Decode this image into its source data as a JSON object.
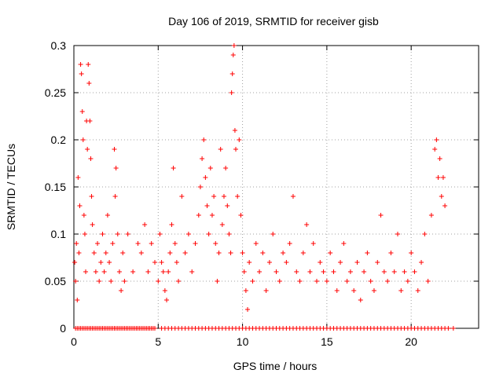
{
  "chart_data": {
    "type": "scatter",
    "title": "Day 106 of 2019, SRMTID for receiver gisb",
    "xlabel": "GPS time / hours",
    "ylabel": "SRMTID / TECUs",
    "xlim": [
      0,
      24
    ],
    "ylim": [
      0,
      0.3
    ],
    "xticks": [
      0,
      5,
      10,
      15,
      20
    ],
    "xtick_labels": [
      "0",
      "5",
      "10",
      "15",
      "20"
    ],
    "yticks": [
      0,
      0.05,
      0.1,
      0.15,
      0.2,
      0.25,
      0.3
    ],
    "ytick_labels": [
      "0",
      "0.05",
      "0.1",
      "0.15",
      "0.2",
      "0.25",
      "0.3"
    ],
    "grid": true,
    "marker": "plus",
    "color": "#ff0000",
    "series": [
      {
        "name": "SRMTID",
        "points": [
          [
            0.05,
            0.07
          ],
          [
            0.1,
            0.05
          ],
          [
            0.15,
            0.09
          ],
          [
            0.2,
            0.03
          ],
          [
            0.25,
            0.16
          ],
          [
            0.3,
            0.08
          ],
          [
            0.35,
            0.13
          ],
          [
            0.4,
            0.28
          ],
          [
            0.45,
            0.27
          ],
          [
            0.5,
            0.23
          ],
          [
            0.55,
            0.2
          ],
          [
            0.6,
            0.12
          ],
          [
            0.65,
            0.1
          ],
          [
            0.7,
            0.06
          ],
          [
            0.75,
            0.22
          ],
          [
            0.8,
            0.19
          ],
          [
            0.85,
            0.28
          ],
          [
            0.9,
            0.26
          ],
          [
            0.95,
            0.22
          ],
          [
            1.0,
            0.18
          ],
          [
            1.05,
            0.14
          ],
          [
            1.1,
            0.11
          ],
          [
            1.2,
            0.08
          ],
          [
            1.3,
            0.06
          ],
          [
            1.4,
            0.09
          ],
          [
            1.5,
            0.05
          ],
          [
            1.6,
            0.07
          ],
          [
            1.7,
            0.1
          ],
          [
            1.8,
            0.06
          ],
          [
            1.9,
            0.08
          ],
          [
            2.0,
            0.12
          ],
          [
            2.1,
            0.07
          ],
          [
            2.2,
            0.05
          ],
          [
            2.3,
            0.09
          ],
          [
            2.4,
            0.19
          ],
          [
            2.45,
            0.14
          ],
          [
            2.5,
            0.17
          ],
          [
            2.6,
            0.1
          ],
          [
            2.7,
            0.06
          ],
          [
            2.8,
            0.04
          ],
          [
            2.9,
            0.08
          ],
          [
            3.0,
            0.05
          ],
          [
            3.2,
            0.1
          ],
          [
            3.5,
            0.06
          ],
          [
            3.8,
            0.09
          ],
          [
            4.0,
            0.08
          ],
          [
            4.2,
            0.11
          ],
          [
            4.4,
            0.06
          ],
          [
            4.6,
            0.09
          ],
          [
            4.8,
            0.07
          ],
          [
            5.0,
            0.05
          ],
          [
            5.1,
            0.1
          ],
          [
            5.2,
            0.07
          ],
          [
            5.3,
            0.06
          ],
          [
            5.4,
            0.04
          ],
          [
            5.5,
            0.03
          ],
          [
            5.6,
            0.06
          ],
          [
            5.7,
            0.08
          ],
          [
            5.8,
            0.11
          ],
          [
            5.9,
            0.17
          ],
          [
            6.0,
            0.09
          ],
          [
            6.1,
            0.07
          ],
          [
            6.2,
            0.05
          ],
          [
            6.4,
            0.14
          ],
          [
            6.6,
            0.08
          ],
          [
            6.8,
            0.1
          ],
          [
            7.0,
            0.06
          ],
          [
            7.2,
            0.09
          ],
          [
            7.4,
            0.12
          ],
          [
            7.5,
            0.15
          ],
          [
            7.6,
            0.18
          ],
          [
            7.7,
            0.2
          ],
          [
            7.8,
            0.16
          ],
          [
            7.9,
            0.13
          ],
          [
            8.0,
            0.1
          ],
          [
            8.1,
            0.17
          ],
          [
            8.2,
            0.12
          ],
          [
            8.3,
            0.14
          ],
          [
            8.4,
            0.09
          ],
          [
            8.5,
            0.05
          ],
          [
            8.6,
            0.08
          ],
          [
            8.7,
            0.19
          ],
          [
            8.8,
            0.11
          ],
          [
            8.9,
            0.14
          ],
          [
            9.0,
            0.17
          ],
          [
            9.1,
            0.13
          ],
          [
            9.2,
            0.1
          ],
          [
            9.3,
            0.08
          ],
          [
            9.35,
            0.25
          ],
          [
            9.4,
            0.27
          ],
          [
            9.45,
            0.29
          ],
          [
            9.5,
            0.3
          ],
          [
            9.55,
            0.21
          ],
          [
            9.6,
            0.19
          ],
          [
            9.7,
            0.14
          ],
          [
            9.8,
            0.2
          ],
          [
            9.9,
            0.12
          ],
          [
            10.0,
            0.08
          ],
          [
            10.1,
            0.06
          ],
          [
            10.2,
            0.04
          ],
          [
            10.3,
            0.02
          ],
          [
            10.4,
            0.07
          ],
          [
            10.6,
            0.05
          ],
          [
            10.8,
            0.09
          ],
          [
            11.0,
            0.06
          ],
          [
            11.2,
            0.08
          ],
          [
            11.4,
            0.04
          ],
          [
            11.6,
            0.07
          ],
          [
            11.8,
            0.1
          ],
          [
            12.0,
            0.06
          ],
          [
            12.2,
            0.05
          ],
          [
            12.4,
            0.08
          ],
          [
            12.6,
            0.07
          ],
          [
            12.8,
            0.09
          ],
          [
            13.0,
            0.14
          ],
          [
            13.2,
            0.06
          ],
          [
            13.4,
            0.05
          ],
          [
            13.6,
            0.08
          ],
          [
            13.8,
            0.11
          ],
          [
            14.0,
            0.06
          ],
          [
            14.2,
            0.09
          ],
          [
            14.4,
            0.05
          ],
          [
            14.6,
            0.07
          ],
          [
            14.8,
            0.06
          ],
          [
            15.0,
            0.05
          ],
          [
            15.2,
            0.08
          ],
          [
            15.4,
            0.06
          ],
          [
            15.6,
            0.04
          ],
          [
            15.8,
            0.07
          ],
          [
            16.0,
            0.09
          ],
          [
            16.2,
            0.05
          ],
          [
            16.4,
            0.06
          ],
          [
            16.6,
            0.04
          ],
          [
            16.8,
            0.07
          ],
          [
            17.0,
            0.03
          ],
          [
            17.2,
            0.06
          ],
          [
            17.4,
            0.08
          ],
          [
            17.6,
            0.05
          ],
          [
            17.8,
            0.04
          ],
          [
            18.0,
            0.07
          ],
          [
            18.2,
            0.12
          ],
          [
            18.4,
            0.06
          ],
          [
            18.6,
            0.05
          ],
          [
            18.8,
            0.08
          ],
          [
            19.0,
            0.06
          ],
          [
            19.2,
            0.1
          ],
          [
            19.4,
            0.04
          ],
          [
            19.6,
            0.06
          ],
          [
            19.8,
            0.05
          ],
          [
            20.0,
            0.08
          ],
          [
            20.2,
            0.06
          ],
          [
            20.4,
            0.04
          ],
          [
            20.6,
            0.07
          ],
          [
            20.8,
            0.1
          ],
          [
            21.0,
            0.05
          ],
          [
            21.2,
            0.12
          ],
          [
            21.4,
            0.19
          ],
          [
            21.5,
            0.2
          ],
          [
            21.6,
            0.16
          ],
          [
            21.7,
            0.18
          ],
          [
            21.8,
            0.14
          ],
          [
            21.9,
            0.16
          ],
          [
            22.0,
            0.13
          ]
        ]
      }
    ],
    "zero_band": [
      0.1,
      0.2,
      0.3,
      0.4,
      0.5,
      0.6,
      0.7,
      0.8,
      0.9,
      1.0,
      1.1,
      1.2,
      1.3,
      1.4,
      1.5,
      1.6,
      1.7,
      1.8,
      1.9,
      2.0,
      2.1,
      2.2,
      2.3,
      2.4,
      2.5,
      2.6,
      2.7,
      2.8,
      2.9,
      3.0,
      3.1,
      3.2,
      3.3,
      3.4,
      3.5,
      3.6,
      3.7,
      3.8,
      3.9,
      4.0,
      4.1,
      4.2,
      4.3,
      4.4,
      4.5,
      4.6,
      4.7,
      4.8,
      5.2,
      5.4,
      5.6,
      5.8,
      6.0,
      6.2,
      6.4,
      6.6,
      6.8,
      7.0,
      7.2,
      7.4,
      7.6,
      7.8,
      8.0,
      8.2,
      8.4,
      8.6,
      8.8,
      9.0,
      9.2,
      9.4,
      9.6,
      9.8,
      10.0,
      10.2,
      10.4,
      10.6,
      10.8,
      11.0,
      11.2,
      11.4,
      11.6,
      11.8,
      12.0,
      12.2,
      12.4,
      12.6,
      12.8,
      13.0,
      13.2,
      13.4,
      13.6,
      13.8,
      14.0,
      14.2,
      14.4,
      14.6,
      14.8,
      15.0,
      15.2,
      15.4,
      15.6,
      15.8,
      16.0,
      16.2,
      16.4,
      16.6,
      16.8,
      17.0,
      17.2,
      17.4,
      17.6,
      17.8,
      18.0,
      18.2,
      18.4,
      18.6,
      18.8,
      19.0,
      19.2,
      19.4,
      19.6,
      19.8,
      20.0,
      20.2,
      20.4,
      20.6,
      20.8,
      21.0,
      21.2,
      21.4,
      21.6,
      21.8,
      22.0,
      22.2,
      22.5
    ]
  }
}
